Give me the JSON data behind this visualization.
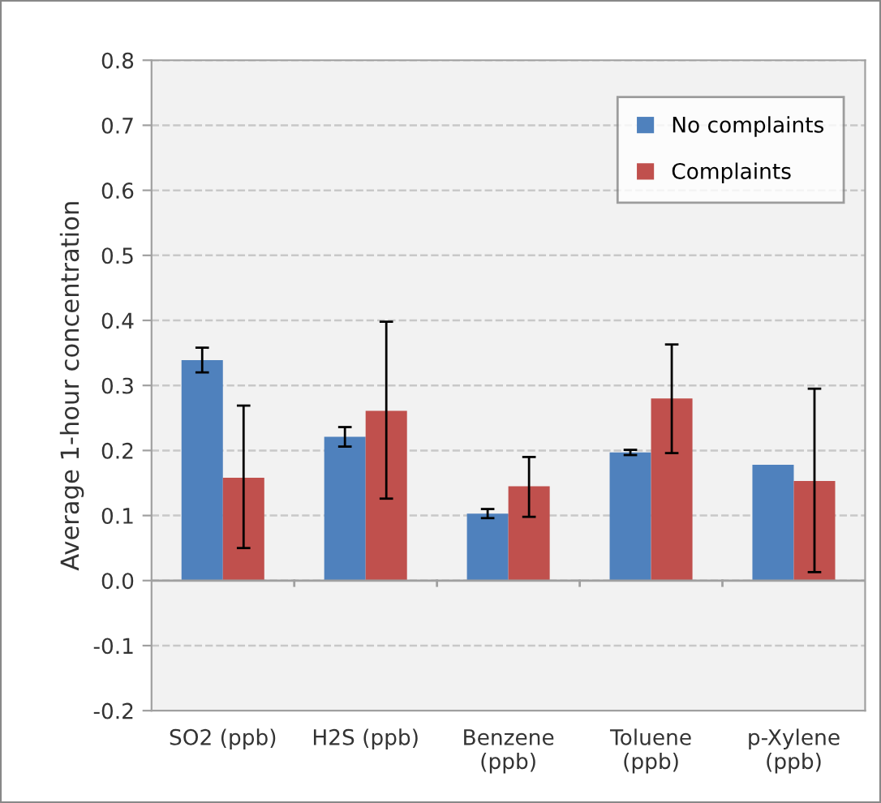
{
  "chart_data": {
    "type": "bar",
    "ylabel": "Average 1-hour concentration",
    "categories": [
      "SO2 (ppb)",
      "H2S (ppb)",
      "Benzene\n(ppb)",
      "Toluene\n(ppb)",
      "p-Xylene\n(ppb)"
    ],
    "series": [
      {
        "name": "No complaints",
        "color": "#4f81bd",
        "values": [
          0.339,
          0.221,
          0.103,
          0.197,
          0.178
        ],
        "errors": [
          0.019,
          0.015,
          0.007,
          0.004,
          null
        ]
      },
      {
        "name": "Complaints",
        "color": "#c0504d",
        "values": [
          0.158,
          0.261,
          0.145,
          0.28,
          0.153
        ],
        "errors": [
          [
            0.05,
            0.269
          ],
          [
            0.126,
            0.398
          ],
          [
            0.098,
            0.19
          ],
          [
            0.196,
            0.363
          ],
          [
            0.013,
            0.295
          ]
        ]
      }
    ],
    "ylim": [
      -0.2,
      0.8
    ],
    "yticks": [
      {
        "value": -0.2,
        "label": "-0.2"
      },
      {
        "value": -0.1,
        "label": "-0.1"
      },
      {
        "value": 0,
        "label": "0.0"
      },
      {
        "value": 0.1,
        "label": "0.1"
      },
      {
        "value": 0.2,
        "label": "0.2"
      },
      {
        "value": 0.3,
        "label": "0.3"
      },
      {
        "value": 0.4,
        "label": "0.4"
      },
      {
        "value": 0.5,
        "label": "0.5"
      },
      {
        "value": 0.6,
        "label": "0.6"
      },
      {
        "value": 0.7,
        "label": "0.7"
      },
      {
        "value": 0.8,
        "label": "0.8"
      }
    ],
    "grid": "y",
    "legend": "top right"
  }
}
